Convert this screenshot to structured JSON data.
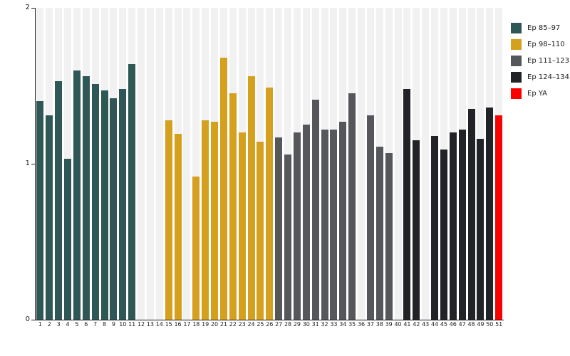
{
  "figure": {
    "background": "#ffffff",
    "stripe_color": "#f1f1f1",
    "axis_color": "#1c1c1c",
    "text_color": "#1c1c1c"
  },
  "chart_data": {
    "type": "bar",
    "title": "",
    "xlabel": "",
    "ylabel": "",
    "ylim": [
      0,
      2
    ],
    "yticks": [
      "0",
      "1",
      "2"
    ],
    "grid": false,
    "legend_position": "top-right",
    "groups": [
      {
        "name": "Ep 85–97",
        "color": "#2f5755"
      },
      {
        "name": "Ep 98–110",
        "color": "#d4a01e"
      },
      {
        "name": "Ep 111–123",
        "color": "#55575b"
      },
      {
        "name": "Ep 124–134",
        "color": "#222326"
      },
      {
        "name": "Ep YA",
        "color": "#fa0100"
      }
    ],
    "bars": [
      {
        "label": "1",
        "value": 1.4,
        "group": 0
      },
      {
        "label": "2",
        "value": 1.31,
        "group": 0
      },
      {
        "label": "3",
        "value": 1.53,
        "group": 0
      },
      {
        "label": "4",
        "value": 1.03,
        "group": 0
      },
      {
        "label": "5",
        "value": 1.6,
        "group": 0
      },
      {
        "label": "6",
        "value": 1.56,
        "group": 0
      },
      {
        "label": "7",
        "value": 1.51,
        "group": 0
      },
      {
        "label": "8",
        "value": 1.47,
        "group": 0
      },
      {
        "label": "9",
        "value": 1.42,
        "group": 0
      },
      {
        "label": "10",
        "value": 1.48,
        "group": 0
      },
      {
        "label": "11",
        "value": 1.64,
        "group": 0
      },
      {
        "label": "12",
        "value": null,
        "group": 0
      },
      {
        "label": "13",
        "value": null,
        "group": 0
      },
      {
        "label": "14",
        "value": null,
        "group": 1
      },
      {
        "label": "15",
        "value": 1.28,
        "group": 1
      },
      {
        "label": "16",
        "value": 1.19,
        "group": 1
      },
      {
        "label": "17",
        "value": null,
        "group": 1
      },
      {
        "label": "18",
        "value": 0.92,
        "group": 1
      },
      {
        "label": "19",
        "value": 1.28,
        "group": 1
      },
      {
        "label": "20",
        "value": 1.27,
        "group": 1
      },
      {
        "label": "21",
        "value": 1.68,
        "group": 1
      },
      {
        "label": "22",
        "value": 1.45,
        "group": 1
      },
      {
        "label": "23",
        "value": 1.2,
        "group": 1
      },
      {
        "label": "24",
        "value": 1.56,
        "group": 1
      },
      {
        "label": "25",
        "value": 1.14,
        "group": 1
      },
      {
        "label": "26",
        "value": 1.49,
        "group": 1
      },
      {
        "label": "27",
        "value": 1.17,
        "group": 2
      },
      {
        "label": "28",
        "value": 1.06,
        "group": 2
      },
      {
        "label": "29",
        "value": 1.2,
        "group": 2
      },
      {
        "label": "30",
        "value": 1.25,
        "group": 2
      },
      {
        "label": "31",
        "value": 1.41,
        "group": 2
      },
      {
        "label": "32",
        "value": 1.22,
        "group": 2
      },
      {
        "label": "33",
        "value": 1.22,
        "group": 2
      },
      {
        "label": "34",
        "value": 1.27,
        "group": 2
      },
      {
        "label": "35",
        "value": 1.45,
        "group": 2
      },
      {
        "label": "36",
        "value": null,
        "group": 2
      },
      {
        "label": "37",
        "value": 1.31,
        "group": 2
      },
      {
        "label": "38",
        "value": 1.11,
        "group": 2
      },
      {
        "label": "39",
        "value": 1.07,
        "group": 2
      },
      {
        "label": "40",
        "value": null,
        "group": 3
      },
      {
        "label": "41",
        "value": 1.48,
        "group": 3
      },
      {
        "label": "42",
        "value": 1.15,
        "group": 3
      },
      {
        "label": "43",
        "value": null,
        "group": 3
      },
      {
        "label": "44",
        "value": 1.18,
        "group": 3
      },
      {
        "label": "45",
        "value": 1.09,
        "group": 3
      },
      {
        "label": "46",
        "value": 1.2,
        "group": 3
      },
      {
        "label": "47",
        "value": 1.22,
        "group": 3
      },
      {
        "label": "48",
        "value": 1.35,
        "group": 3
      },
      {
        "label": "49",
        "value": 1.16,
        "group": 3
      },
      {
        "label": "50",
        "value": 1.36,
        "group": 3
      },
      {
        "label": "51",
        "value": 1.31,
        "group": 4
      }
    ]
  }
}
